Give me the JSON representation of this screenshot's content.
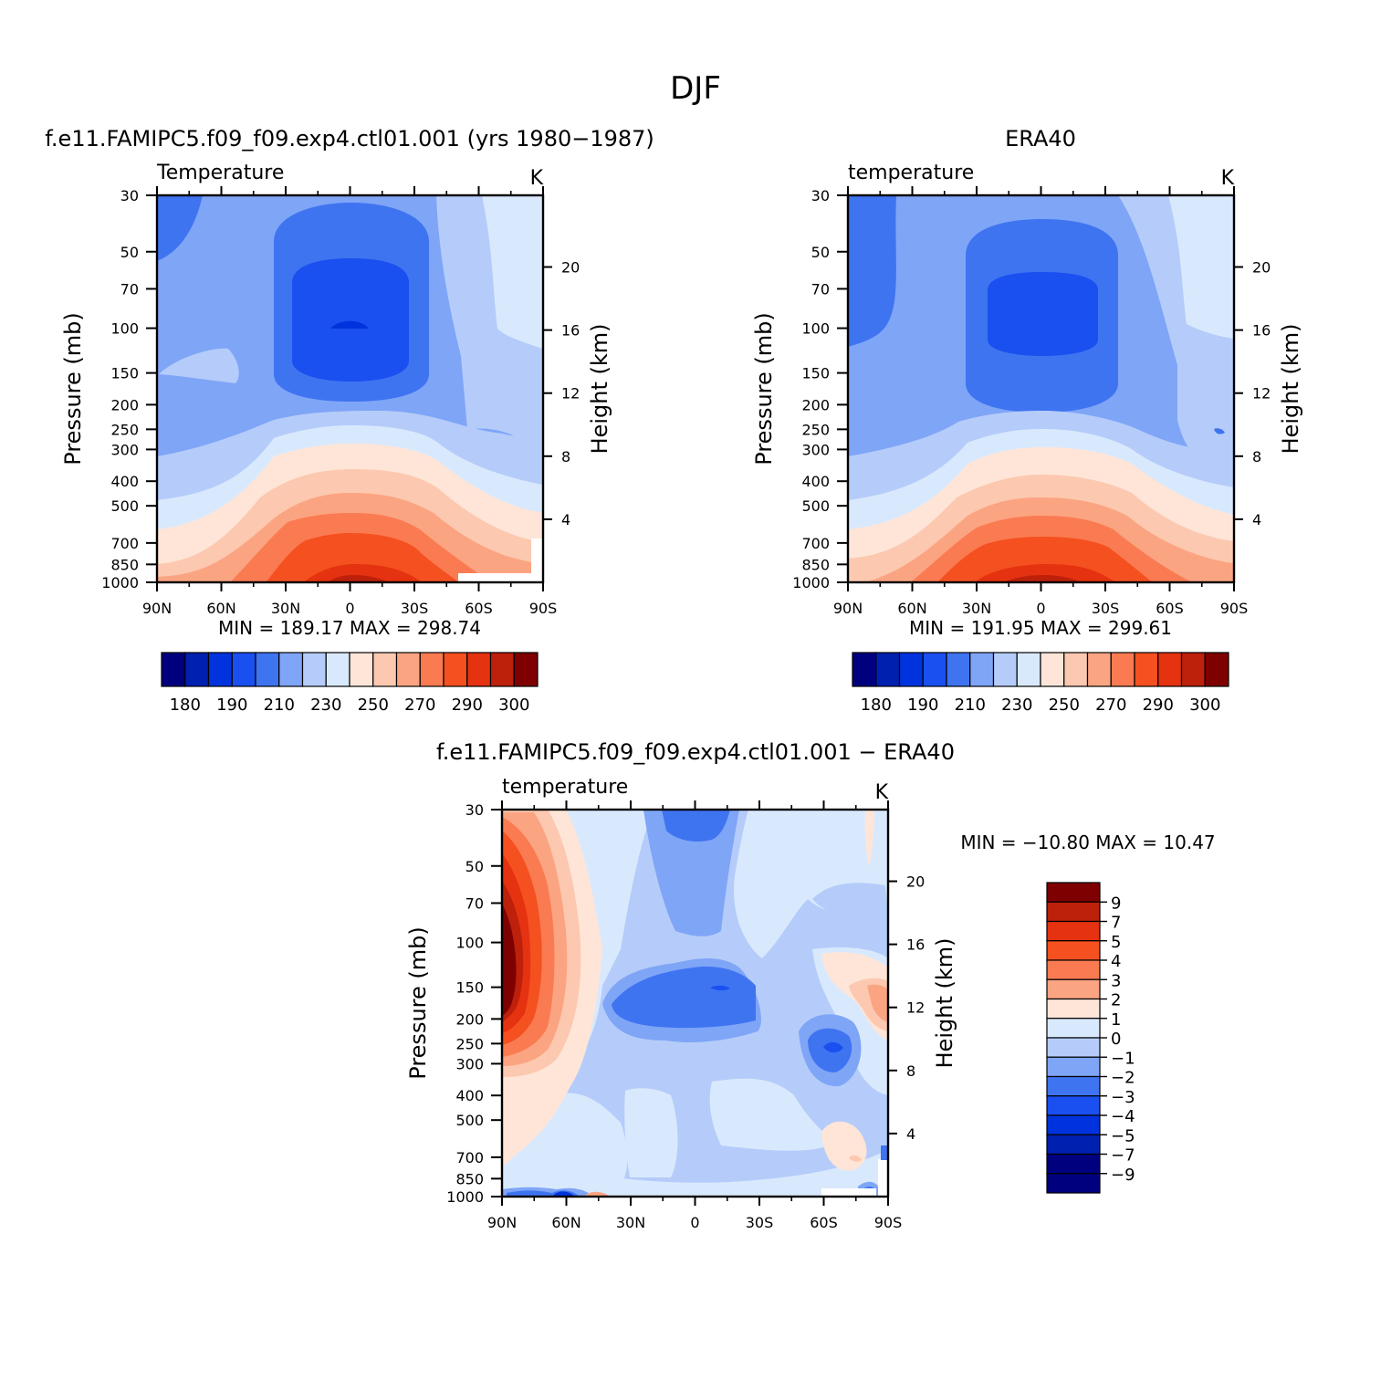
{
  "figure": {
    "title": "DJF"
  },
  "chart_data": [
    {
      "type": "heatmap",
      "title": "f.e11.FAMIPC5.f09_f09.exp4.ctl01.001 (yrs 1980-1987)",
      "left_string": "Temperature",
      "right_string": "K",
      "xlabel": "",
      "ylabel": "Pressure (mb)",
      "y2label": "Height (km)",
      "x_ticks": [
        "90N",
        "60N",
        "30N",
        "0",
        "30S",
        "60S",
        "90S"
      ],
      "y_ticks": [
        "30",
        "50",
        "70",
        "100",
        "150",
        "200",
        "250",
        "300",
        "400",
        "500",
        "700",
        "850",
        "1000"
      ],
      "y2_ticks": [
        "20",
        "16",
        "12",
        "8",
        "4"
      ],
      "y_scale": "log",
      "stats": "MIN =  189.17   MAX =  298.74",
      "min": 189.17,
      "max": 298.74,
      "legend_orientation": "horizontal",
      "legend_labels": [
        "180",
        "190",
        "210",
        "230",
        "250",
        "270",
        "290",
        "300"
      ]
    },
    {
      "type": "heatmap",
      "title": "ERA40",
      "left_string": "temperature",
      "right_string": "K",
      "xlabel": "",
      "ylabel": "Pressure (mb)",
      "y2label": "Height (km)",
      "x_ticks": [
        "90N",
        "60N",
        "30N",
        "0",
        "30S",
        "60S",
        "90S"
      ],
      "y_ticks": [
        "30",
        "50",
        "70",
        "100",
        "150",
        "200",
        "250",
        "300",
        "400",
        "500",
        "700",
        "850",
        "1000"
      ],
      "y2_ticks": [
        "20",
        "16",
        "12",
        "8",
        "4"
      ],
      "y_scale": "log",
      "stats": "MIN =  191.95   MAX =  299.61",
      "min": 191.95,
      "max": 299.61,
      "legend_orientation": "horizontal",
      "legend_labels": [
        "180",
        "190",
        "210",
        "230",
        "250",
        "270",
        "290",
        "300"
      ]
    },
    {
      "type": "heatmap",
      "title": "f.e11.FAMIPC5.f09_f09.exp4.ctl01.001 - ERA40",
      "left_string": "temperature",
      "right_string": "K",
      "xlabel": "",
      "ylabel": "Pressure (mb)",
      "y2label": "Height (km)",
      "x_ticks": [
        "90N",
        "60N",
        "30N",
        "0",
        "30S",
        "60S",
        "90S"
      ],
      "y_ticks": [
        "30",
        "50",
        "70",
        "100",
        "150",
        "200",
        "250",
        "300",
        "400",
        "500",
        "700",
        "850",
        "1000"
      ],
      "y2_ticks": [
        "20",
        "16",
        "12",
        "8",
        "4"
      ],
      "y_scale": "log",
      "stats": "MIN = -10.80   MAX =   10.47",
      "min": -10.8,
      "max": 10.47,
      "legend_orientation": "vertical",
      "legend_labels": [
        "9",
        "7",
        "5",
        "4",
        "3",
        "2",
        "1",
        "0",
        "-1",
        "-2",
        "-3",
        "-4",
        "-5",
        "-7",
        "-9"
      ]
    }
  ],
  "colormap": [
    "#00007f",
    "#0020b0",
    "#0033dd",
    "#1a4ff0",
    "#3f74f0",
    "#7fa5f7",
    "#b5ccfa",
    "#d9e9fd",
    "#fee5d8",
    "#fcc8af",
    "#fba482",
    "#fa7b52",
    "#f5501f",
    "#e53210",
    "#bd200b",
    "#7f0000"
  ],
  "diff_colormap": [
    "#7f0000",
    "#bd200b",
    "#e53210",
    "#f5501f",
    "#fa7b52",
    "#fba482",
    "#fee5d8",
    "#d9e9fd",
    "#b5ccfa",
    "#7fa5f7",
    "#3f74f0",
    "#1a4ff0",
    "#0033dd",
    "#0020b0",
    "#00007f"
  ]
}
